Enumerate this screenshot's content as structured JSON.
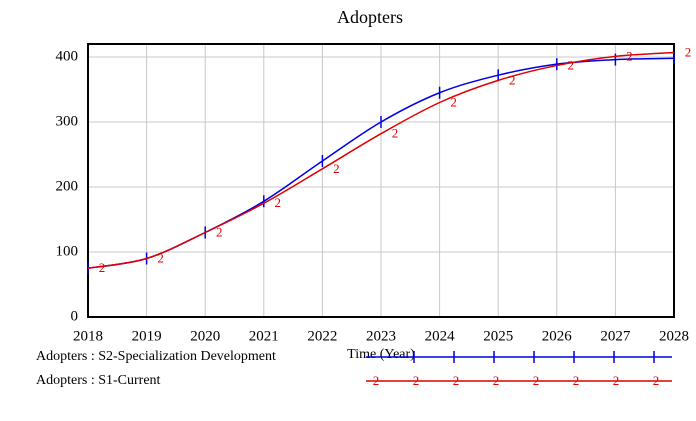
{
  "chart_data": {
    "type": "line",
    "title": "Adopters",
    "x_label": "Time (Year)",
    "x": [
      2018,
      2019,
      2020,
      2021,
      2022,
      2023,
      2024,
      2025,
      2026,
      2027,
      2028
    ],
    "series": [
      {
        "name": "Adopters : S2-Specialization Development",
        "color": "#0000e0",
        "values": [
          75,
          90,
          130,
          178,
          240,
          300,
          345,
          372,
          389,
          396,
          398
        ]
      },
      {
        "name": "Adopters : S1-Current",
        "color": "#e00000",
        "marker": "2",
        "values": [
          75,
          90,
          130,
          175,
          228,
          282,
          330,
          364,
          387,
          401,
          407
        ]
      }
    ],
    "xlim": [
      2018,
      2028
    ],
    "xticks": [
      2018,
      2019,
      2020,
      2021,
      2022,
      2023,
      2024,
      2025,
      2026,
      2027,
      2028
    ],
    "ylim": [
      0,
      420
    ],
    "yticks": [
      0,
      100,
      200,
      300,
      400
    ],
    "grid": true
  }
}
